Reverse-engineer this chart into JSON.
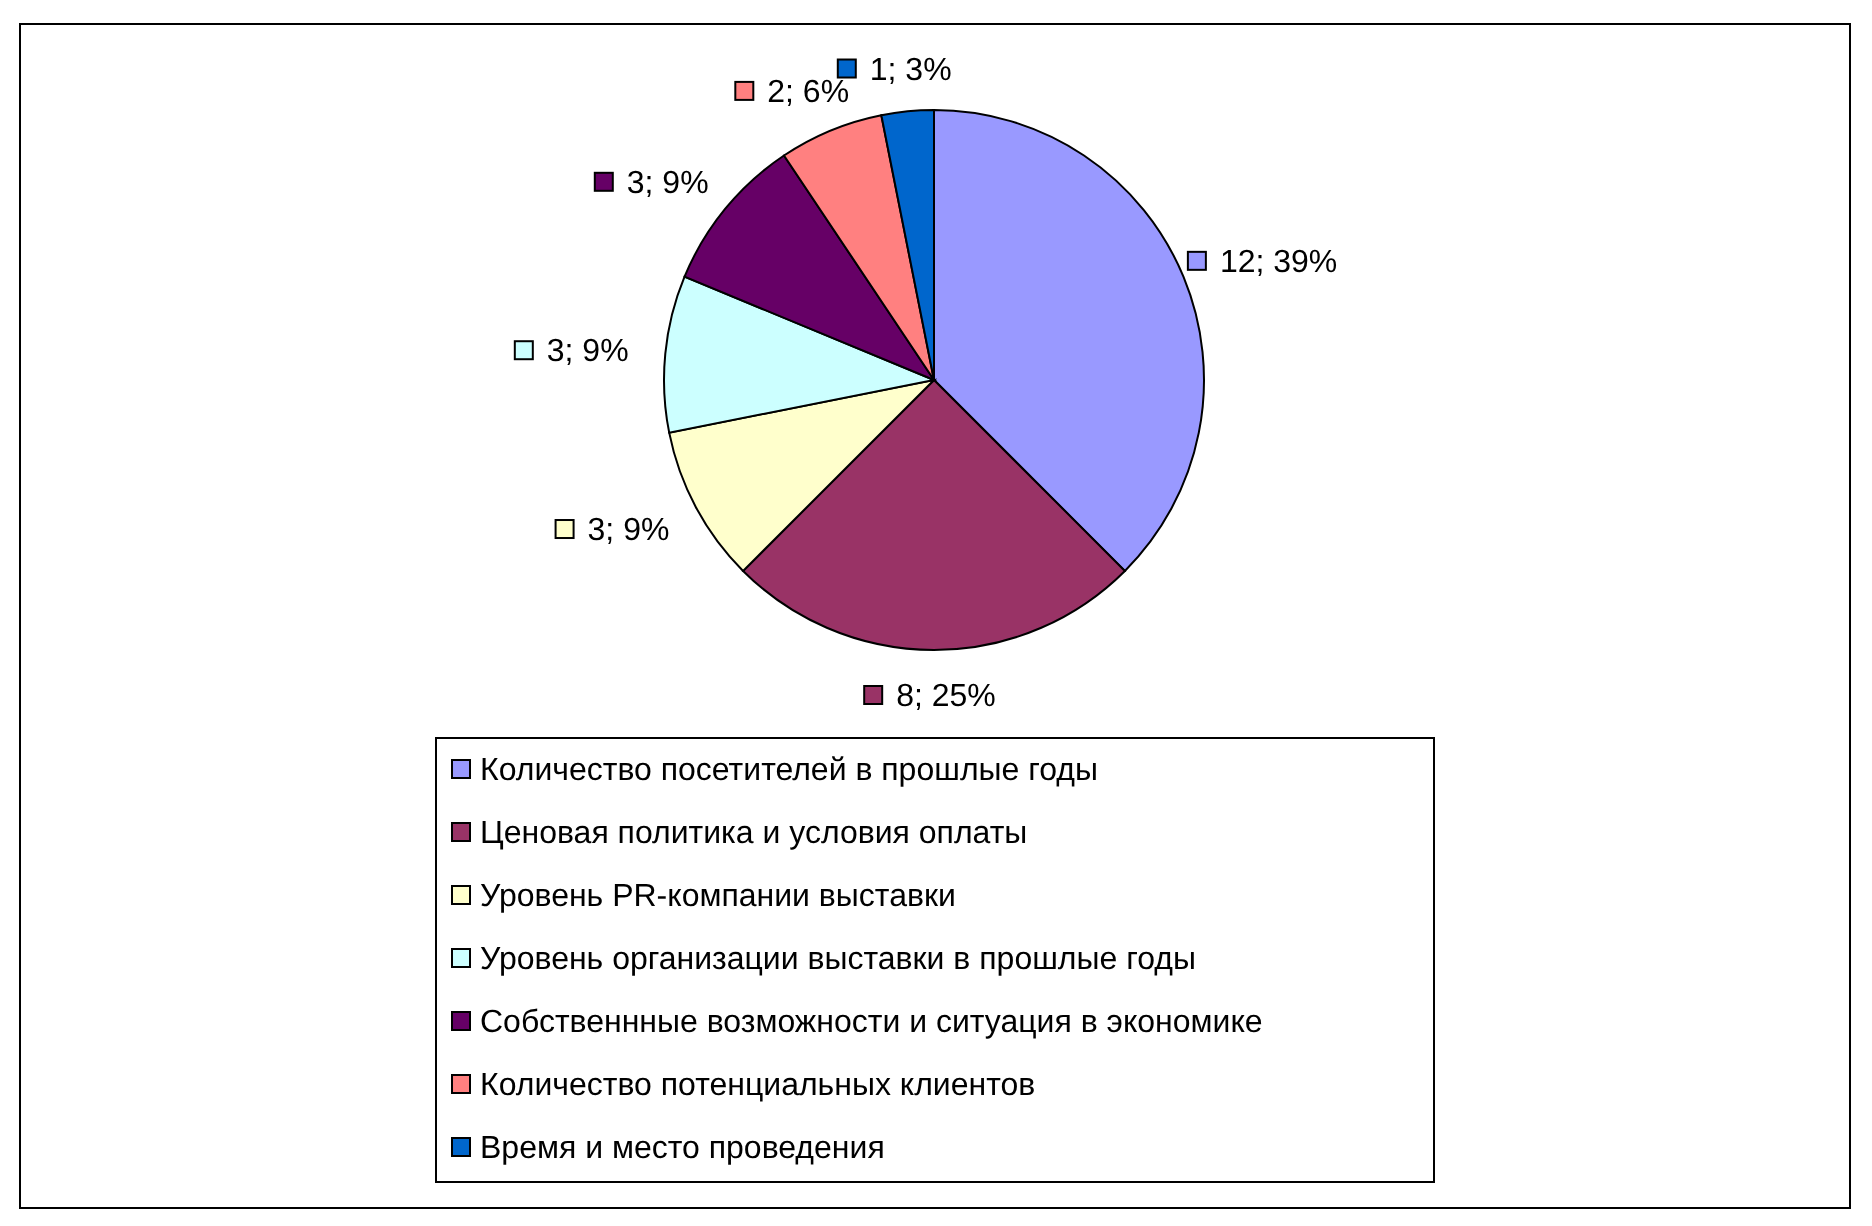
{
  "chart_data": {
    "type": "pie",
    "categories": [
      "Количество посетителей в прошлые годы",
      "Ценовая политика и условия оплаты",
      "Уровень PR-компании выставки",
      "Уровень организации выставки в прошлые годы",
      "Собственнные возможности и ситуация в экономике",
      "Количество потенциальных клиентов",
      "Время и место проведения"
    ],
    "values": [
      12,
      8,
      3,
      3,
      3,
      2,
      1
    ],
    "value_labels": [
      "12; 39%",
      "8; 25%",
      "3; 9%",
      "3; 9%",
      "3; 9%",
      "2; 6%",
      "1; 3%"
    ],
    "colors": [
      "#9999ff",
      "#993366",
      "#ffffcc",
      "#ccffff",
      "#660066",
      "#ff8080",
      "#0066cc"
    ],
    "legend": "bottom"
  }
}
